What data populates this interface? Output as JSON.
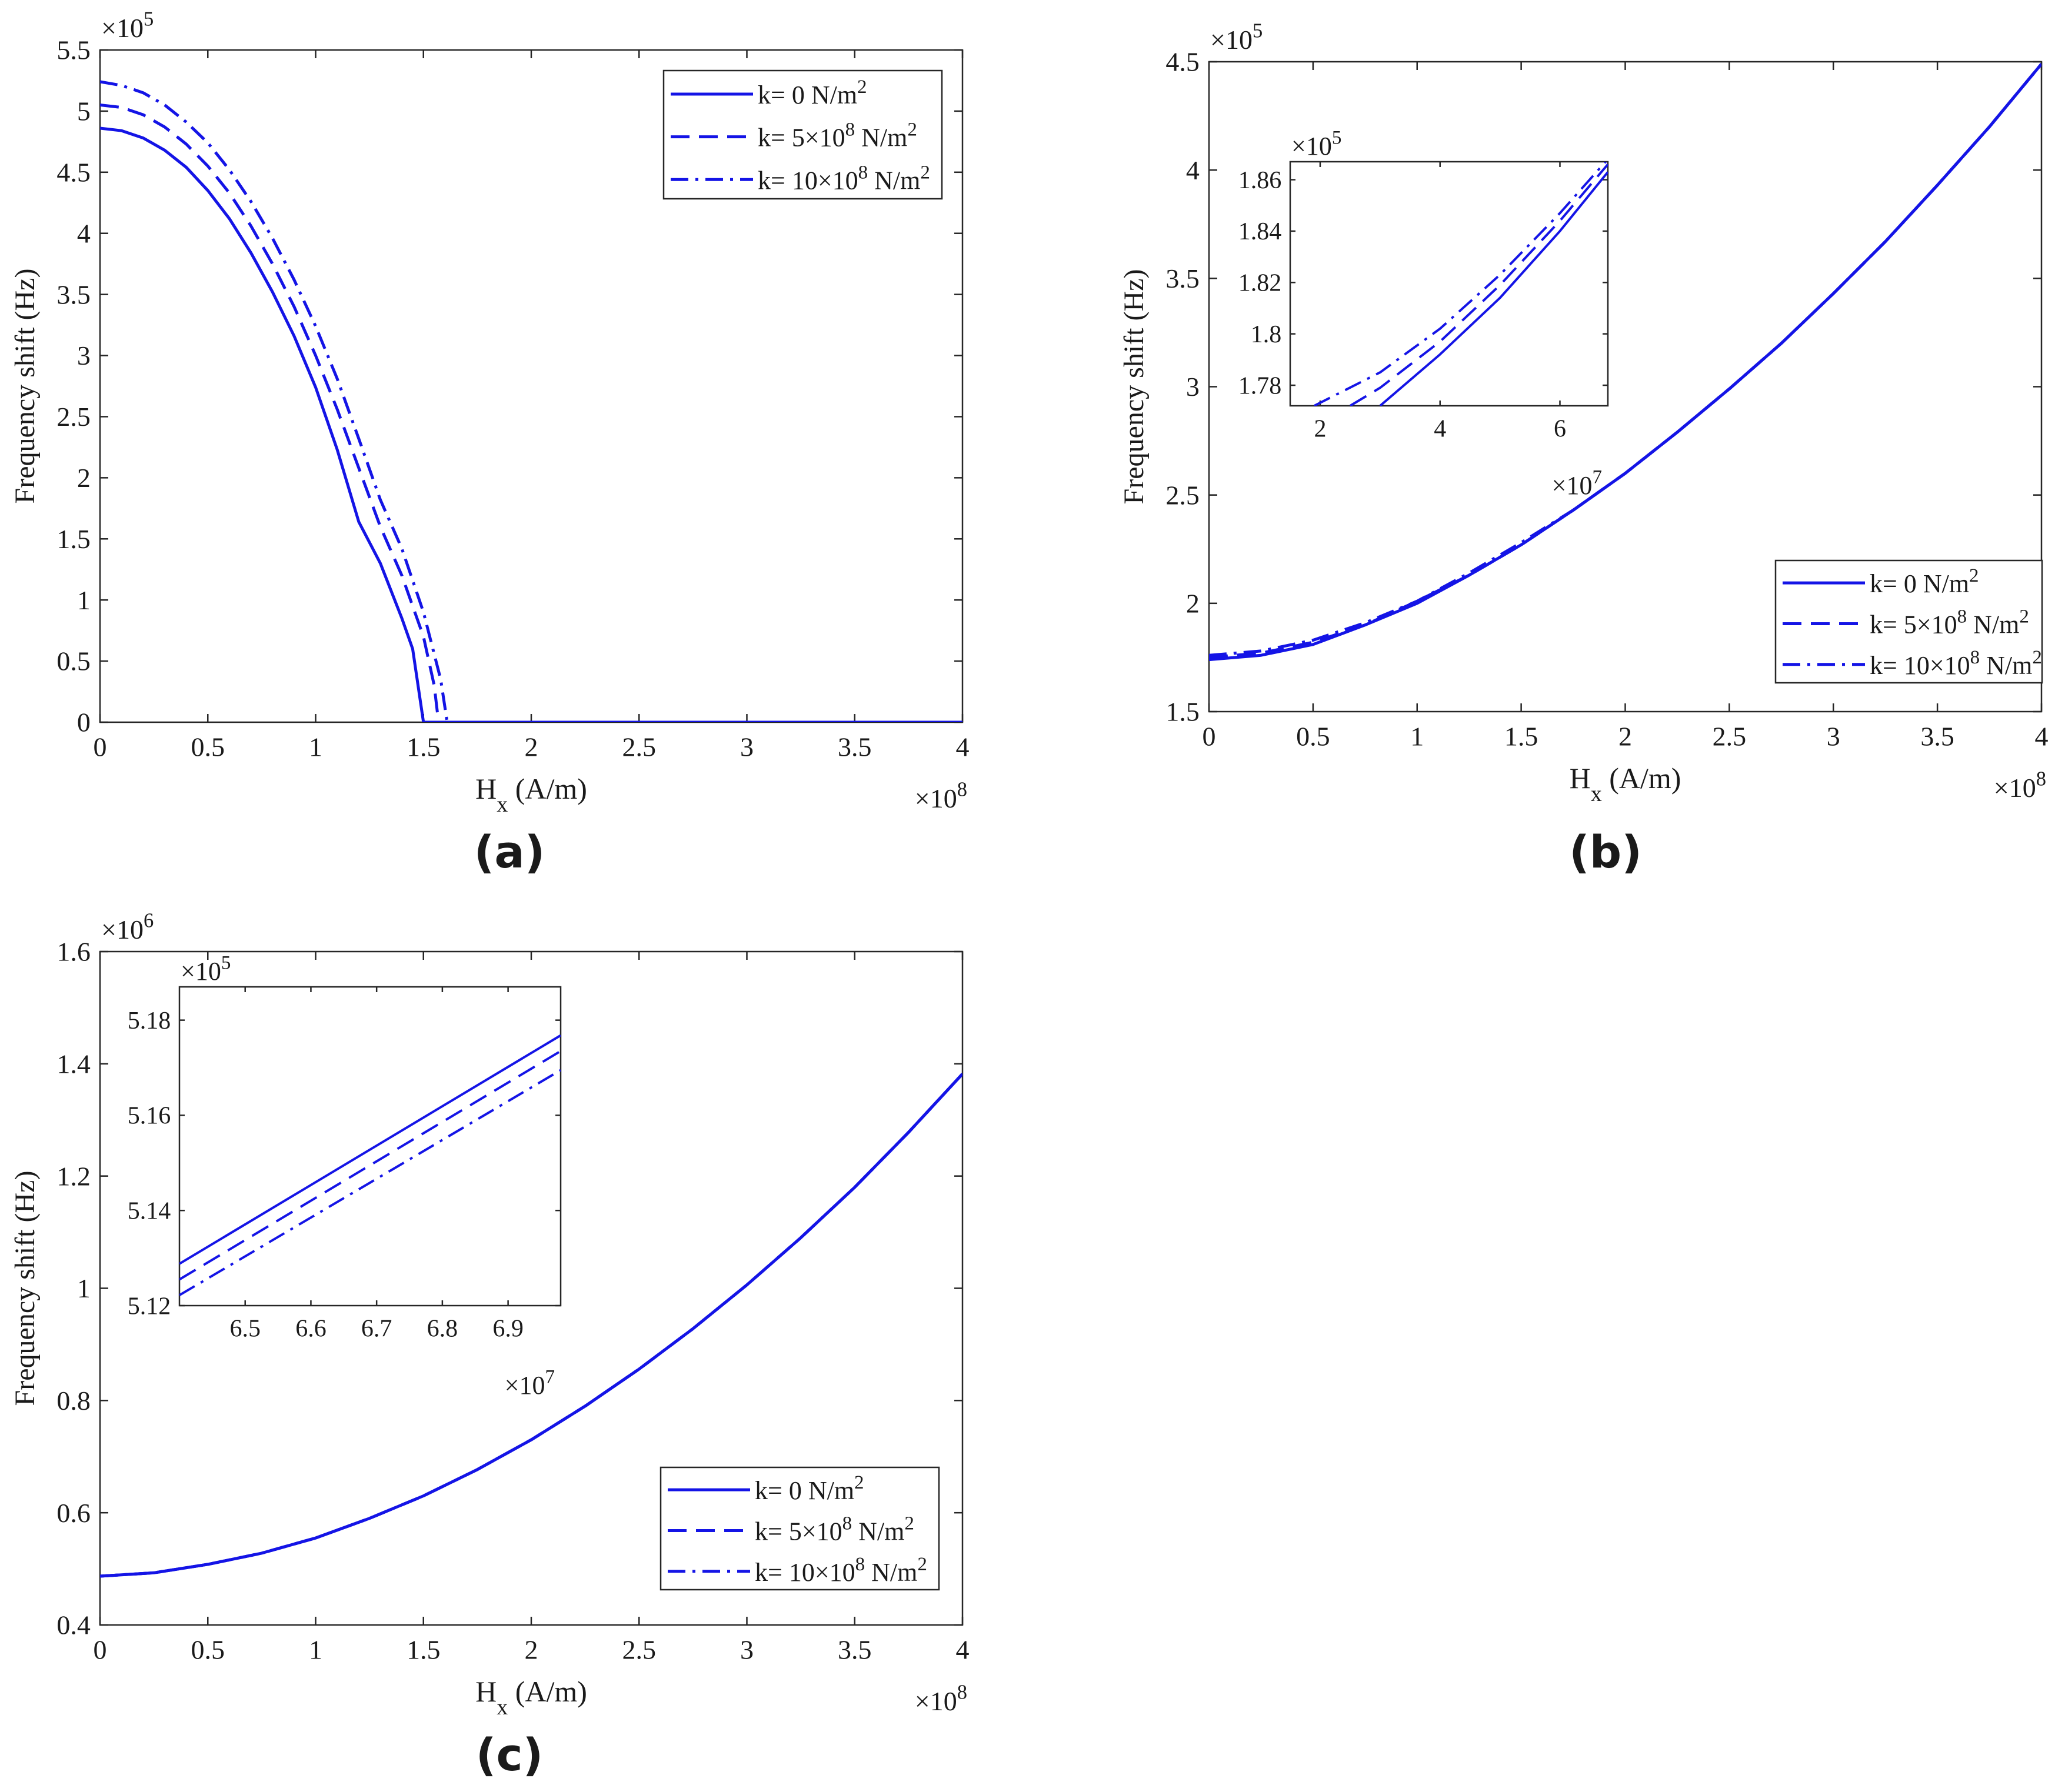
{
  "figure": {
    "panel_labels": [
      "(a)",
      "(b)",
      "(c)"
    ],
    "line_color": "#1414e6"
  },
  "chart_data": [
    {
      "panel": "(a)",
      "type": "line",
      "xlabel_main": "H",
      "xlabel_sub": "x",
      "xlabel_unit": "(A/m)",
      "ylabel": "Frequency shift (Hz)",
      "x_multiplier": {
        "base": "×10",
        "exp": "8"
      },
      "y_multiplier": {
        "base": "×10",
        "exp": "5"
      },
      "xlim": [
        0,
        4
      ],
      "ylim": [
        0,
        5.5
      ],
      "xticks": [
        0,
        0.5,
        1,
        1.5,
        2,
        2.5,
        3,
        3.5,
        4
      ],
      "xtick_labels": [
        "0",
        "0.5",
        "1",
        "1.5",
        "2",
        "2.5",
        "3",
        "3.5",
        "4"
      ],
      "yticks": [
        0,
        0.5,
        1,
        1.5,
        2,
        2.5,
        3,
        3.5,
        4,
        4.5,
        5,
        5.5
      ],
      "ytick_labels": [
        "0",
        "0.5",
        "1",
        "1.5",
        "2",
        "2.5",
        "3",
        "3.5",
        "4",
        "4.5",
        "5",
        "5.5"
      ],
      "legend": {
        "position": "top-right",
        "entries": [
          {
            "pre": "k= 0 N/m",
            "sup": "2",
            "mid": "",
            "sup2": ""
          },
          {
            "pre": "k= 5×10",
            "sup": "8",
            "mid": " N/m",
            "sup2": "2"
          },
          {
            "pre": "k= 10×10",
            "sup": "8",
            "mid": " N/m",
            "sup2": "2"
          }
        ]
      },
      "series": [
        {
          "name": "k= 0 N/m2",
          "style": "solid",
          "x": [
            0,
            0.1,
            0.2,
            0.3,
            0.4,
            0.5,
            0.6,
            0.7,
            0.8,
            0.9,
            1.0,
            1.1,
            1.2,
            1.3,
            1.4,
            1.45,
            1.5,
            4.0
          ],
          "y": [
            4.86,
            4.84,
            4.78,
            4.68,
            4.54,
            4.35,
            4.12,
            3.84,
            3.52,
            3.16,
            2.74,
            2.23,
            1.64,
            1.3,
            0.85,
            0.6,
            0.0,
            0.0
          ]
        },
        {
          "name": "k= 5×10^8 N/m2",
          "style": "dash",
          "x": [
            0,
            0.1,
            0.2,
            0.3,
            0.4,
            0.5,
            0.6,
            0.7,
            0.8,
            0.9,
            1.0,
            1.1,
            1.2,
            1.3,
            1.4,
            1.5,
            1.55,
            1.57
          ],
          "y": [
            5.05,
            5.03,
            4.97,
            4.87,
            4.73,
            4.55,
            4.33,
            4.06,
            3.75,
            3.4,
            3.0,
            2.56,
            2.08,
            1.6,
            1.2,
            0.7,
            0.3,
            0.0
          ]
        },
        {
          "name": "k= 10×10^8 N/m2",
          "style": "dashdot",
          "x": [
            0,
            0.1,
            0.2,
            0.3,
            0.4,
            0.5,
            0.6,
            0.7,
            0.8,
            0.9,
            1.0,
            1.1,
            1.2,
            1.3,
            1.4,
            1.5,
            1.58,
            1.61
          ],
          "y": [
            5.24,
            5.21,
            5.15,
            5.05,
            4.91,
            4.74,
            4.52,
            4.26,
            3.96,
            3.62,
            3.24,
            2.81,
            2.32,
            1.82,
            1.42,
            0.9,
            0.35,
            0.0
          ]
        }
      ]
    },
    {
      "panel": "(b)",
      "type": "line",
      "xlabel_main": "H",
      "xlabel_sub": "x",
      "xlabel_unit": "(A/m)",
      "ylabel": "Frequency shift (Hz)",
      "x_multiplier": {
        "base": "×10",
        "exp": "8"
      },
      "y_multiplier": {
        "base": "×10",
        "exp": "5"
      },
      "xlim": [
        0,
        4
      ],
      "ylim": [
        1.5,
        4.5
      ],
      "xticks": [
        0,
        0.5,
        1,
        1.5,
        2,
        2.5,
        3,
        3.5,
        4
      ],
      "xtick_labels": [
        "0",
        "0.5",
        "1",
        "1.5",
        "2",
        "2.5",
        "3",
        "3.5",
        "4"
      ],
      "yticks": [
        1.5,
        2,
        2.5,
        3,
        3.5,
        4,
        4.5
      ],
      "ytick_labels": [
        "1.5",
        "2",
        "2.5",
        "3",
        "3.5",
        "4",
        "4.5"
      ],
      "legend": {
        "position": "bottom-right",
        "entries": [
          {
            "pre": "k= 0 N/m",
            "sup": "2",
            "mid": "",
            "sup2": ""
          },
          {
            "pre": "k= 5×10",
            "sup": "8",
            "mid": " N/m",
            "sup2": "2"
          },
          {
            "pre": "k= 10×10",
            "sup": "8",
            "mid": " N/m",
            "sup2": "2"
          }
        ]
      },
      "series": [
        {
          "name": "k= 0 N/m2",
          "style": "solid",
          "x": [
            0,
            0.25,
            0.5,
            0.75,
            1.0,
            1.25,
            1.5,
            1.75,
            2.0,
            2.25,
            2.5,
            2.75,
            3.0,
            3.25,
            3.5,
            3.75,
            4.0
          ],
          "y": [
            1.74,
            1.76,
            1.81,
            1.9,
            2.0,
            2.13,
            2.27,
            2.43,
            2.6,
            2.79,
            2.99,
            3.2,
            3.43,
            3.67,
            3.93,
            4.2,
            4.49
          ]
        },
        {
          "name": "k= 5×10^8 N/m2",
          "style": "dash",
          "x": [
            0,
            0.25,
            0.5,
            0.75,
            1.0,
            1.25,
            1.5,
            1.75,
            2.0,
            2.25,
            2.5,
            2.75,
            3.0,
            3.25,
            3.5,
            3.75,
            4.0
          ],
          "y": [
            1.75,
            1.77,
            1.82,
            1.9,
            2.01,
            2.13,
            2.27,
            2.43,
            2.6,
            2.79,
            2.99,
            3.2,
            3.43,
            3.67,
            3.93,
            4.2,
            4.49
          ]
        },
        {
          "name": "k= 10×10^8 N/m2",
          "style": "dashdot",
          "x": [
            0,
            0.25,
            0.5,
            0.75,
            1.0,
            1.25,
            1.5,
            1.75,
            2.0,
            2.25,
            2.5,
            2.75,
            3.0,
            3.25,
            3.5,
            3.75,
            4.0
          ],
          "y": [
            1.76,
            1.78,
            1.83,
            1.91,
            2.01,
            2.14,
            2.28,
            2.43,
            2.6,
            2.79,
            2.99,
            3.2,
            3.43,
            3.67,
            3.93,
            4.2,
            4.49
          ]
        }
      ],
      "inset": {
        "xlim": [
          1.5,
          6.8
        ],
        "ylim": [
          1.772,
          1.867
        ],
        "xticks": [
          2,
          4,
          6
        ],
        "xtick_labels": [
          "2",
          "4",
          "6"
        ],
        "yticks": [
          1.78,
          1.8,
          1.82,
          1.84,
          1.86
        ],
        "ytick_labels": [
          "1.78",
          "1.8",
          "1.82",
          "1.84",
          "1.86"
        ],
        "x_multiplier": {
          "base": "×10",
          "exp": "7"
        },
        "y_multiplier": {
          "base": "×10",
          "exp": "5"
        },
        "series": [
          {
            "style": "solid",
            "x": [
              3.0,
              4.0,
              5.0,
              6.0,
              6.8
            ],
            "y": [
              1.772,
              1.792,
              1.814,
              1.84,
              1.863
            ]
          },
          {
            "style": "dash",
            "x": [
              2.5,
              3.0,
              4.0,
              5.0,
              6.0,
              6.8
            ],
            "y": [
              1.772,
              1.779,
              1.797,
              1.819,
              1.844,
              1.866
            ]
          },
          {
            "style": "dashdot",
            "x": [
              1.9,
              3.0,
              4.0,
              5.0,
              6.0,
              6.8
            ],
            "y": [
              1.772,
              1.785,
              1.802,
              1.823,
              1.847,
              1.868
            ]
          }
        ]
      }
    },
    {
      "panel": "(c)",
      "type": "line",
      "xlabel_main": "H",
      "xlabel_sub": "x",
      "xlabel_unit": "(A/m)",
      "ylabel": "Frequency shift (Hz)",
      "x_multiplier": {
        "base": "×10",
        "exp": "8"
      },
      "y_multiplier": {
        "base": "×10",
        "exp": "6"
      },
      "xlim": [
        0,
        4
      ],
      "ylim": [
        0.4,
        1.6
      ],
      "xticks": [
        0,
        0.5,
        1,
        1.5,
        2,
        2.5,
        3,
        3.5,
        4
      ],
      "xtick_labels": [
        "0",
        "0.5",
        "1",
        "1.5",
        "2",
        "2.5",
        "3",
        "3.5",
        "4"
      ],
      "yticks": [
        0.4,
        0.6,
        0.8,
        1.0,
        1.2,
        1.4,
        1.6
      ],
      "ytick_labels": [
        "0.4",
        "0.6",
        "0.8",
        "1",
        "1.2",
        "1.4",
        "1.6"
      ],
      "legend": {
        "position": "bottom-right",
        "entries": [
          {
            "pre": "k= 0 N/m",
            "sup": "2",
            "mid": "",
            "sup2": ""
          },
          {
            "pre": "k= 5×10",
            "sup": "8",
            "mid": " N/m",
            "sup2": "2"
          },
          {
            "pre": "k= 10×10",
            "sup": "8",
            "mid": " N/m",
            "sup2": "2"
          }
        ]
      },
      "series": [
        {
          "name": "k= 0 N/m2",
          "style": "solid",
          "x": [
            0,
            0.25,
            0.5,
            0.75,
            1.0,
            1.25,
            1.5,
            1.75,
            2.0,
            2.25,
            2.5,
            2.75,
            3.0,
            3.25,
            3.5,
            3.75,
            4.0
          ],
          "y": [
            0.487,
            0.493,
            0.508,
            0.528,
            0.555,
            0.59,
            0.63,
            0.677,
            0.73,
            0.79,
            0.856,
            0.928,
            1.006,
            1.09,
            1.18,
            1.278,
            1.382
          ]
        },
        {
          "name": "k= 5×10^8 N/m2",
          "style": "dash",
          "x": [
            0,
            0.25,
            0.5,
            0.75,
            1.0,
            1.25,
            1.5,
            1.75,
            2.0,
            2.25,
            2.5,
            2.75,
            3.0,
            3.25,
            3.5,
            3.75,
            4.0
          ],
          "y": [
            0.487,
            0.493,
            0.508,
            0.528,
            0.555,
            0.59,
            0.63,
            0.677,
            0.73,
            0.79,
            0.856,
            0.928,
            1.006,
            1.09,
            1.18,
            1.278,
            1.382
          ]
        },
        {
          "name": "k= 10×10^8 N/m2",
          "style": "dashdot",
          "x": [
            0,
            0.25,
            0.5,
            0.75,
            1.0,
            1.25,
            1.5,
            1.75,
            2.0,
            2.25,
            2.5,
            2.75,
            3.0,
            3.25,
            3.5,
            3.75,
            4.0
          ],
          "y": [
            0.487,
            0.493,
            0.508,
            0.528,
            0.555,
            0.59,
            0.63,
            0.677,
            0.73,
            0.79,
            0.856,
            0.928,
            1.006,
            1.09,
            1.18,
            1.278,
            1.382
          ]
        }
      ],
      "inset": {
        "xlim": [
          6.4,
          6.98
        ],
        "ylim": [
          5.12,
          5.187
        ],
        "xticks": [
          6.5,
          6.6,
          6.7,
          6.8,
          6.9
        ],
        "xtick_labels": [
          "6.5",
          "6.6",
          "6.7",
          "6.8",
          "6.9"
        ],
        "yticks": [
          5.12,
          5.14,
          5.16,
          5.18
        ],
        "ytick_labels": [
          "5.12",
          "5.14",
          "5.16",
          "5.18"
        ],
        "x_multiplier": {
          "base": "×10",
          "exp": "7"
        },
        "y_multiplier": {
          "base": "×10",
          "exp": "5"
        },
        "series": [
          {
            "style": "solid",
            "x": [
              6.4,
              6.98
            ],
            "y": [
              5.1288,
              5.1768
            ]
          },
          {
            "style": "dash",
            "x": [
              6.4,
              6.98
            ],
            "y": [
              5.1255,
              5.1735
            ]
          },
          {
            "style": "dashdot",
            "x": [
              6.4,
              6.98
            ],
            "y": [
              5.1222,
              5.1695
            ]
          }
        ]
      }
    }
  ]
}
